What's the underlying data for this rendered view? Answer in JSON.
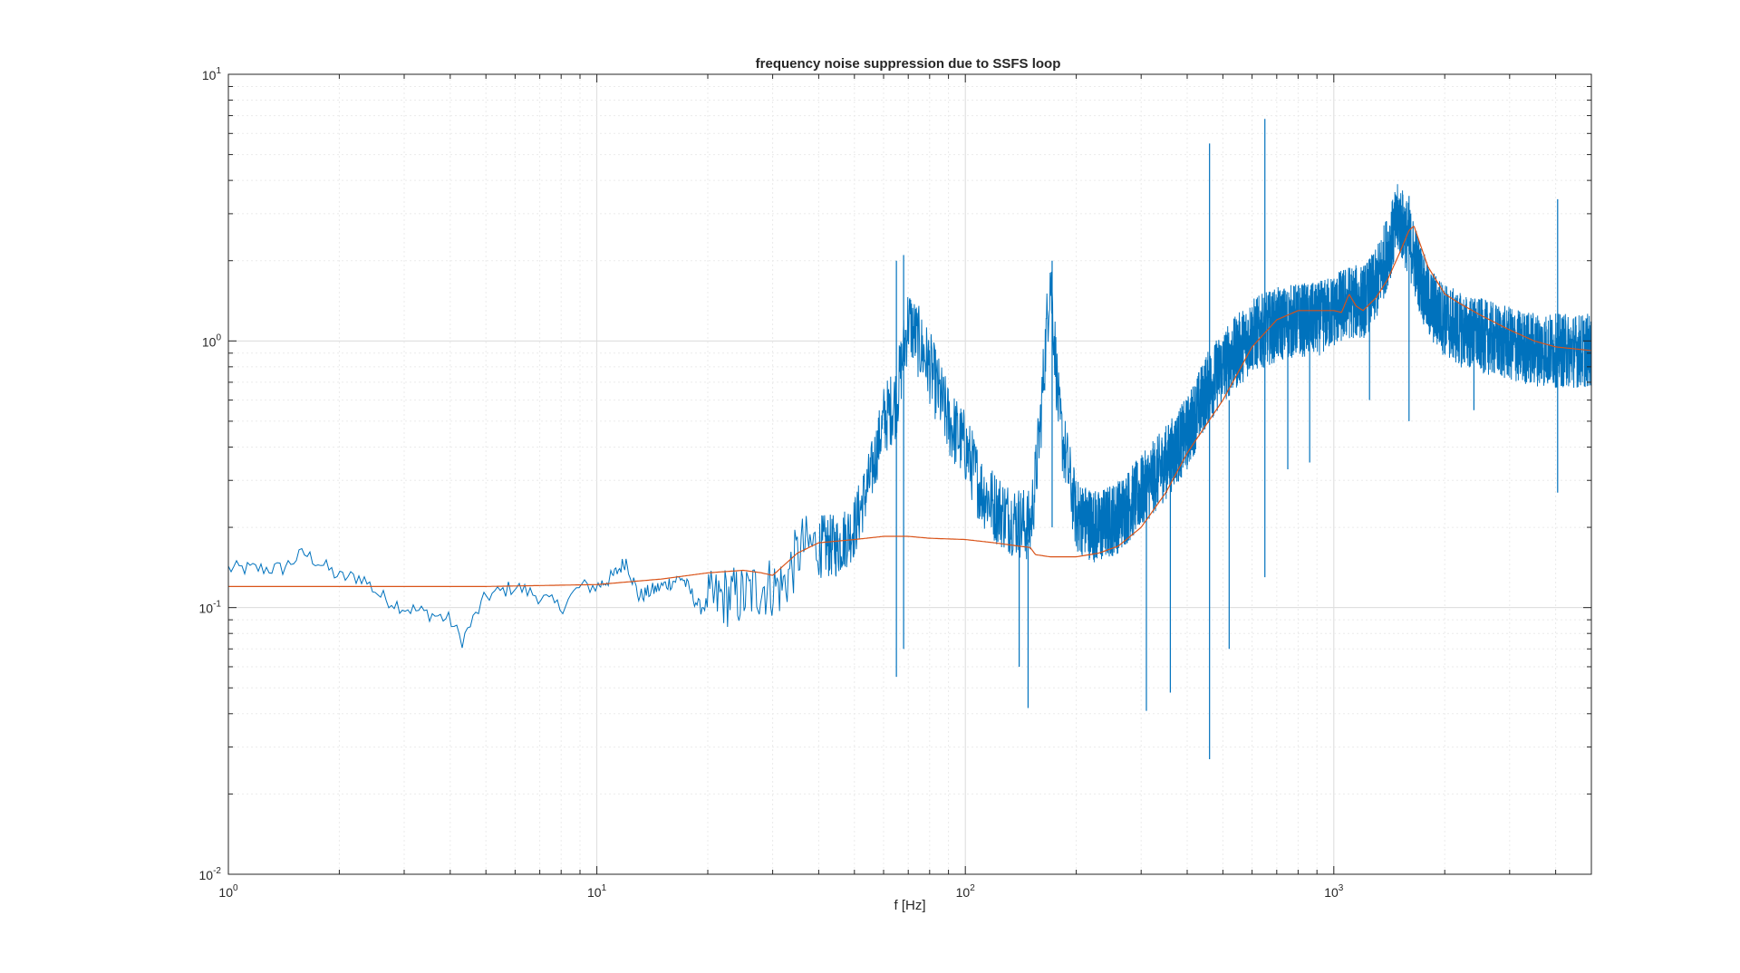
{
  "chart_data": {
    "type": "line",
    "title": "frequency noise suppression due to SSFS loop",
    "xlabel": "f [Hz]",
    "ylabel": "",
    "xscale": "log",
    "yscale": "log",
    "xlim": [
      1,
      5000
    ],
    "ylim": [
      0.01,
      10
    ],
    "grid": "on (major and minor, log)",
    "x_ticks": [
      {
        "value": 1,
        "base": "10",
        "exp": "0"
      },
      {
        "value": 10,
        "base": "10",
        "exp": "1"
      },
      {
        "value": 100,
        "base": "10",
        "exp": "2"
      },
      {
        "value": 1000,
        "base": "10",
        "exp": "3"
      }
    ],
    "y_ticks": [
      {
        "value": 0.01,
        "base": "10",
        "exp": "-2"
      },
      {
        "value": 0.1,
        "base": "10",
        "exp": "-1"
      },
      {
        "value": 1,
        "base": "10",
        "exp": "0"
      },
      {
        "value": 10,
        "base": "10",
        "exp": "1"
      }
    ],
    "series": [
      {
        "color": "#0072BD",
        "noisy": true,
        "x": [
          1,
          1.2,
          1.4,
          1.6,
          1.8,
          2,
          2.3,
          2.6,
          3,
          3.5,
          4,
          4.3,
          5,
          6,
          7,
          8,
          9,
          10,
          11,
          12,
          13,
          15,
          17,
          19,
          22,
          25,
          28,
          32,
          36,
          40,
          45,
          50,
          55,
          60,
          65,
          70,
          80,
          90,
          100,
          110,
          120,
          130,
          140,
          150,
          155,
          160,
          170,
          180,
          200,
          230,
          260,
          300,
          350,
          400,
          450,
          500,
          600,
          700,
          800,
          900,
          1000,
          1100,
          1200,
          1300,
          1400,
          1500,
          1600,
          1700,
          1800,
          2000,
          2200,
          2500,
          2800,
          3200,
          3600,
          4000,
          4500,
          5000
        ],
        "y": [
          0.14,
          0.14,
          0.14,
          0.16,
          0.145,
          0.13,
          0.13,
          0.11,
          0.1,
          0.095,
          0.09,
          0.075,
          0.11,
          0.12,
          0.11,
          0.1,
          0.12,
          0.12,
          0.13,
          0.15,
          0.11,
          0.12,
          0.13,
          0.1,
          0.11,
          0.11,
          0.12,
          0.12,
          0.17,
          0.17,
          0.17,
          0.2,
          0.3,
          0.5,
          0.6,
          1.2,
          0.8,
          0.5,
          0.4,
          0.28,
          0.24,
          0.22,
          0.21,
          0.2,
          0.3,
          0.5,
          1.8,
          0.5,
          0.22,
          0.2,
          0.22,
          0.27,
          0.35,
          0.45,
          0.65,
          0.8,
          1.05,
          1.15,
          1.2,
          1.2,
          1.3,
          1.4,
          1.4,
          1.6,
          2.2,
          2.9,
          2.4,
          1.8,
          1.4,
          1.2,
          1.1,
          1.05,
          1.0,
          0.95,
          0.93,
          0.92,
          0.92,
          0.92
        ],
        "spikes": [
          {
            "x": 65,
            "low": 0.055,
            "high": 2.0
          },
          {
            "x": 68,
            "low": 0.07,
            "high": 2.1
          },
          {
            "x": 140,
            "low": 0.06,
            "high": 0.25
          },
          {
            "x": 148,
            "low": 0.042,
            "high": 0.18
          },
          {
            "x": 172,
            "low": 0.2,
            "high": 2.0
          },
          {
            "x": 310,
            "low": 0.041,
            "high": 0.3
          },
          {
            "x": 360,
            "low": 0.048,
            "high": 0.35
          },
          {
            "x": 460,
            "low": 0.027,
            "high": 5.5
          },
          {
            "x": 520,
            "low": 0.07,
            "high": 0.6
          },
          {
            "x": 650,
            "low": 0.13,
            "high": 6.8
          },
          {
            "x": 750,
            "low": 0.33,
            "high": 1.0
          },
          {
            "x": 860,
            "low": 0.35,
            "high": 1.2
          },
          {
            "x": 1250,
            "low": 0.6,
            "high": 2.0
          },
          {
            "x": 1600,
            "low": 0.5,
            "high": 3.5
          },
          {
            "x": 2400,
            "low": 0.55,
            "high": 1.4
          },
          {
            "x": 4050,
            "low": 0.27,
            "high": 3.4
          }
        ]
      },
      {
        "color": "#D95319",
        "noisy": false,
        "x": [
          1,
          5,
          10,
          15,
          20,
          25,
          28,
          30,
          35,
          40,
          50,
          60,
          70,
          80,
          100,
          120,
          140,
          150,
          155,
          170,
          200,
          230,
          260,
          300,
          350,
          400,
          500,
          600,
          700,
          800,
          900,
          1000,
          1050,
          1100,
          1150,
          1200,
          1300,
          1400,
          1500,
          1600,
          1650,
          1800,
          2000,
          2200,
          2500,
          3000,
          3500,
          4000,
          5000
        ],
        "y": [
          0.12,
          0.12,
          0.122,
          0.128,
          0.135,
          0.138,
          0.135,
          0.132,
          0.16,
          0.175,
          0.18,
          0.185,
          0.185,
          0.182,
          0.18,
          0.175,
          0.17,
          0.168,
          0.158,
          0.155,
          0.155,
          0.16,
          0.17,
          0.2,
          0.27,
          0.38,
          0.6,
          0.95,
          1.2,
          1.3,
          1.3,
          1.3,
          1.28,
          1.5,
          1.35,
          1.3,
          1.45,
          1.7,
          2.1,
          2.6,
          2.7,
          1.9,
          1.5,
          1.38,
          1.25,
          1.1,
          1.0,
          0.95,
          0.92
        ]
      }
    ]
  }
}
